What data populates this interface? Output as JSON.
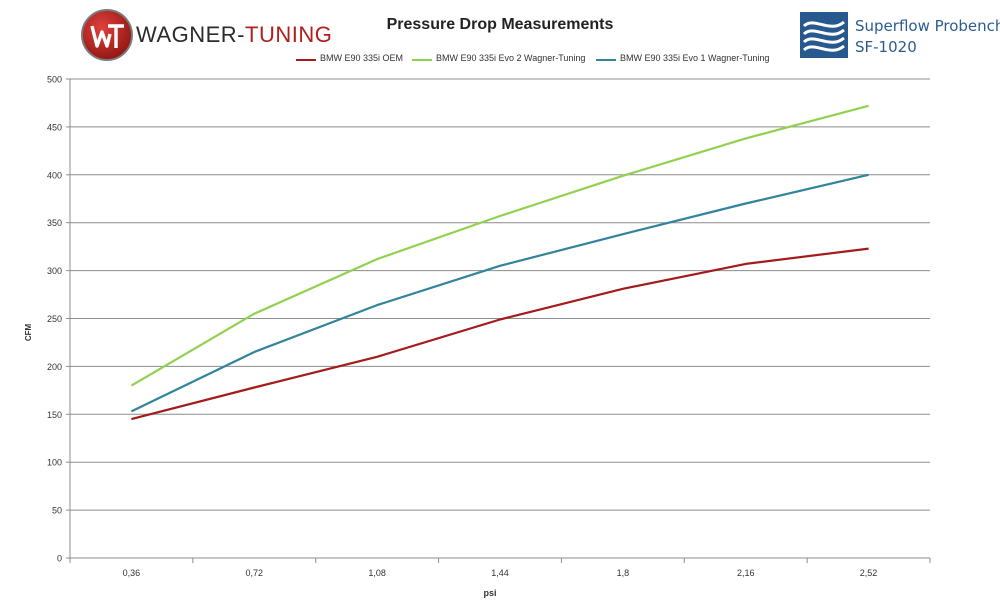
{
  "brand_left": {
    "part1": "WAGNER-",
    "part2": "TUNING"
  },
  "brand_right": {
    "line1": "Superflow Probench",
    "line2": "SF-1020"
  },
  "chart_data": {
    "type": "line",
    "title": "Pressure Drop Measurements",
    "xlabel": "psi",
    "ylabel": "CFM",
    "categories": [
      "0,36",
      "0,72",
      "1,08",
      "1,44",
      "1,8",
      "2,16",
      "2,52"
    ],
    "yticks": [
      "0",
      "50",
      "100",
      "150",
      "200",
      "250",
      "300",
      "350",
      "400",
      "450",
      "500"
    ],
    "ylim": [
      0,
      500
    ],
    "grid": true,
    "legend_position": "top",
    "series": [
      {
        "name": "BMW E90 335i OEM",
        "color": "#a31b1b",
        "values": [
          145,
          178,
          210,
          249,
          281,
          307,
          323
        ]
      },
      {
        "name": "BMW E90 335i Evo 2 Wagner-Tuning",
        "color": "#92d050",
        "values": [
          180,
          255,
          312,
          357,
          399,
          438,
          472
        ]
      },
      {
        "name": "BMW E90 335i Evo 1 Wagner-Tuning",
        "color": "#31849b",
        "values": [
          153,
          215,
          264,
          305,
          338,
          370,
          400
        ]
      }
    ]
  }
}
